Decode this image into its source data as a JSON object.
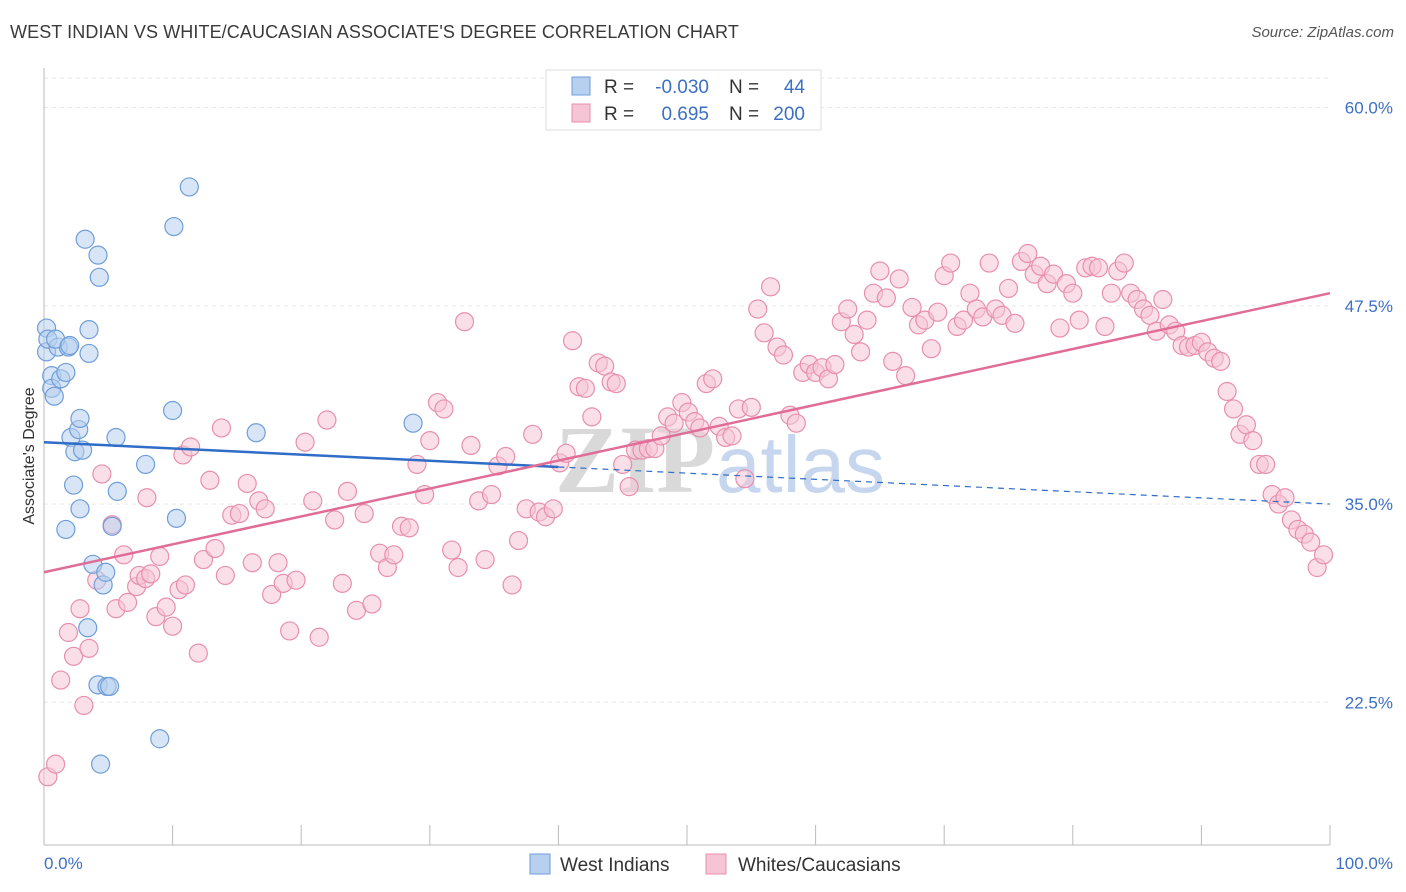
{
  "header": {
    "title": "WEST INDIAN VS WHITE/CAUCASIAN ASSOCIATE'S DEGREE CORRELATION CHART",
    "source": "Source: ZipAtlas.com"
  },
  "watermark": {
    "zip": "ZIP",
    "atlas": "atlas"
  },
  "colors": {
    "blue_fill": "#b7d0ef",
    "blue_stroke": "#6f9ed8",
    "blue_line": "#2f6dc7",
    "pink_fill": "#f6c5d5",
    "pink_stroke": "#e88fad",
    "pink_line": "#e06d97",
    "tick_text": "#3d6fc4",
    "grid": "#e6e6e6"
  },
  "legend_stats": [
    {
      "r_label": "R =",
      "r_value": "-0.030",
      "n_label": "N =",
      "n_value": "44"
    },
    {
      "r_label": "R =",
      "r_value": "0.695",
      "n_label": "N =",
      "n_value": "200"
    }
  ],
  "chart_data": {
    "type": "scatter",
    "title": "WEST INDIAN VS WHITE/CAUCASIAN ASSOCIATE'S DEGREE CORRELATION CHART",
    "xlabel": "",
    "ylabel": "Associate's Degree",
    "xlim": [
      0,
      100
    ],
    "ylim": [
      13.5,
      62.5
    ],
    "x_tick_labels": [
      "0.0%",
      "100.0%"
    ],
    "y_ticks": [
      22.5,
      35.0,
      47.5,
      60.0
    ],
    "y_tick_labels": [
      "22.5%",
      "35.0%",
      "47.5%",
      "60.0%"
    ],
    "grid": true,
    "legend_position": "bottom-center",
    "series": [
      {
        "name": "West Indians",
        "color": "#b7d0ef",
        "trend": {
          "x0": 0,
          "y0": 38.9,
          "x1": 100,
          "y1": 35.0,
          "solid_until": 40
        },
        "points": [
          [
            0.2,
            46.1
          ],
          [
            0.2,
            44.6
          ],
          [
            0.3,
            45.4
          ],
          [
            0.6,
            43.1
          ],
          [
            0.6,
            42.3
          ],
          [
            0.8,
            41.8
          ],
          [
            1.1,
            44.9
          ],
          [
            1.3,
            42.9
          ],
          [
            1.7,
            43.3
          ],
          [
            1.9,
            44.9
          ],
          [
            2.1,
            39.2
          ],
          [
            2.3,
            36.2
          ],
          [
            2.4,
            38.3
          ],
          [
            2.7,
            39.7
          ],
          [
            2.8,
            40.4
          ],
          [
            2.8,
            34.7
          ],
          [
            3.0,
            38.4
          ],
          [
            3.2,
            51.7
          ],
          [
            3.4,
            27.2
          ],
          [
            3.5,
            46.0
          ],
          [
            3.5,
            44.5
          ],
          [
            3.8,
            31.2
          ],
          [
            4.2,
            50.7
          ],
          [
            4.3,
            49.3
          ],
          [
            4.2,
            23.6
          ],
          [
            4.4,
            18.6
          ],
          [
            4.6,
            29.9
          ],
          [
            4.8,
            30.7
          ],
          [
            4.9,
            23.5
          ],
          [
            5.1,
            23.5
          ],
          [
            5.3,
            33.6
          ],
          [
            5.6,
            39.2
          ],
          [
            5.7,
            35.8
          ],
          [
            7.9,
            37.5
          ],
          [
            9.0,
            20.2
          ],
          [
            10.0,
            40.9
          ],
          [
            10.1,
            52.5
          ],
          [
            10.3,
            34.1
          ],
          [
            11.3,
            55.0
          ],
          [
            16.5,
            39.5
          ],
          [
            28.7,
            40.1
          ],
          [
            1.7,
            33.4
          ],
          [
            0.9,
            45.4
          ],
          [
            2.0,
            45.0
          ]
        ]
      },
      {
        "name": "Whites/Caucasians",
        "color": "#f6c5d5",
        "trend": {
          "x0": 0,
          "y0": 30.7,
          "x1": 100,
          "y1": 48.3
        },
        "points": [
          [
            0.3,
            17.8
          ],
          [
            0.9,
            18.6
          ],
          [
            1.3,
            23.9
          ],
          [
            1.9,
            26.9
          ],
          [
            2.3,
            25.4
          ],
          [
            2.8,
            28.4
          ],
          [
            3.1,
            22.3
          ],
          [
            3.5,
            25.9
          ],
          [
            4.1,
            30.2
          ],
          [
            4.5,
            36.9
          ],
          [
            5.3,
            33.7
          ],
          [
            5.6,
            28.4
          ],
          [
            6.2,
            31.8
          ],
          [
            6.5,
            28.8
          ],
          [
            7.2,
            29.8
          ],
          [
            7.4,
            30.5
          ],
          [
            7.9,
            30.3
          ],
          [
            8.0,
            35.4
          ],
          [
            8.3,
            30.6
          ],
          [
            8.7,
            27.9
          ],
          [
            9.0,
            31.7
          ],
          [
            9.5,
            28.5
          ],
          [
            10.0,
            27.3
          ],
          [
            10.5,
            29.6
          ],
          [
            10.8,
            38.1
          ],
          [
            11.0,
            29.9
          ],
          [
            11.4,
            38.6
          ],
          [
            12.0,
            25.6
          ],
          [
            12.4,
            31.5
          ],
          [
            12.9,
            36.5
          ],
          [
            13.3,
            32.2
          ],
          [
            13.8,
            39.8
          ],
          [
            14.1,
            30.5
          ],
          [
            14.6,
            34.3
          ],
          [
            15.2,
            34.4
          ],
          [
            15.8,
            36.3
          ],
          [
            16.2,
            31.3
          ],
          [
            16.7,
            35.2
          ],
          [
            17.2,
            34.7
          ],
          [
            17.7,
            29.3
          ],
          [
            18.2,
            31.3
          ],
          [
            18.6,
            30.0
          ],
          [
            19.1,
            27.0
          ],
          [
            19.6,
            30.2
          ],
          [
            20.3,
            38.9
          ],
          [
            20.9,
            35.2
          ],
          [
            21.4,
            26.6
          ],
          [
            22.0,
            40.3
          ],
          [
            22.6,
            34.0
          ],
          [
            23.2,
            30.0
          ],
          [
            23.6,
            35.8
          ],
          [
            24.3,
            28.3
          ],
          [
            24.9,
            34.4
          ],
          [
            25.5,
            28.7
          ],
          [
            26.1,
            31.9
          ],
          [
            26.7,
            31.0
          ],
          [
            27.2,
            31.8
          ],
          [
            27.8,
            33.6
          ],
          [
            28.4,
            33.5
          ],
          [
            29.0,
            37.5
          ],
          [
            29.6,
            35.6
          ],
          [
            30.0,
            39.0
          ],
          [
            30.6,
            41.4
          ],
          [
            31.1,
            41.0
          ],
          [
            31.7,
            32.1
          ],
          [
            32.2,
            31.0
          ],
          [
            32.7,
            46.5
          ],
          [
            33.2,
            38.7
          ],
          [
            33.8,
            35.2
          ],
          [
            34.3,
            31.5
          ],
          [
            34.8,
            35.6
          ],
          [
            35.3,
            37.4
          ],
          [
            35.9,
            38.0
          ],
          [
            36.4,
            29.9
          ],
          [
            36.9,
            32.7
          ],
          [
            37.5,
            34.7
          ],
          [
            38.0,
            39.4
          ],
          [
            38.5,
            34.5
          ],
          [
            39.0,
            34.2
          ],
          [
            39.6,
            34.7
          ],
          [
            40.1,
            37.6
          ],
          [
            40.6,
            38.2
          ],
          [
            41.1,
            45.3
          ],
          [
            41.6,
            42.4
          ],
          [
            42.1,
            42.3
          ],
          [
            42.6,
            40.5
          ],
          [
            43.1,
            43.9
          ],
          [
            43.6,
            43.7
          ],
          [
            44.1,
            42.7
          ],
          [
            44.5,
            42.6
          ],
          [
            45.0,
            37.5
          ],
          [
            45.5,
            36.1
          ],
          [
            46.0,
            38.4
          ],
          [
            46.5,
            38.4
          ],
          [
            47.0,
            38.5
          ],
          [
            47.5,
            38.5
          ],
          [
            48.0,
            39.3
          ],
          [
            48.5,
            40.5
          ],
          [
            49.0,
            40.1
          ],
          [
            49.6,
            41.4
          ],
          [
            50.1,
            40.8
          ],
          [
            50.6,
            40.2
          ],
          [
            51.0,
            39.8
          ],
          [
            51.5,
            42.6
          ],
          [
            52.0,
            42.9
          ],
          [
            52.5,
            39.9
          ],
          [
            53.0,
            39.2
          ],
          [
            53.5,
            39.3
          ],
          [
            54.0,
            41.0
          ],
          [
            54.5,
            36.6
          ],
          [
            55.0,
            41.1
          ],
          [
            55.5,
            47.3
          ],
          [
            56.0,
            45.8
          ],
          [
            56.5,
            48.7
          ],
          [
            57.0,
            44.9
          ],
          [
            57.5,
            44.4
          ],
          [
            58.0,
            40.6
          ],
          [
            58.5,
            40.1
          ],
          [
            59.0,
            43.3
          ],
          [
            59.5,
            43.8
          ],
          [
            60.0,
            43.3
          ],
          [
            60.5,
            43.6
          ],
          [
            61.0,
            42.9
          ],
          [
            61.5,
            43.8
          ],
          [
            62.0,
            46.5
          ],
          [
            62.5,
            47.3
          ],
          [
            63.0,
            45.7
          ],
          [
            63.5,
            44.6
          ],
          [
            64.0,
            46.6
          ],
          [
            64.5,
            48.3
          ],
          [
            65.0,
            49.7
          ],
          [
            65.5,
            48.0
          ],
          [
            66.0,
            44.0
          ],
          [
            66.5,
            49.2
          ],
          [
            67.0,
            43.1
          ],
          [
            67.5,
            47.4
          ],
          [
            68.0,
            46.3
          ],
          [
            68.5,
            46.6
          ],
          [
            69.0,
            44.8
          ],
          [
            69.5,
            47.1
          ],
          [
            70.0,
            49.4
          ],
          [
            70.5,
            50.2
          ],
          [
            71.0,
            46.2
          ],
          [
            71.5,
            46.6
          ],
          [
            72.0,
            48.3
          ],
          [
            72.5,
            47.3
          ],
          [
            73.0,
            46.8
          ],
          [
            73.5,
            50.2
          ],
          [
            74.0,
            47.3
          ],
          [
            74.5,
            46.9
          ],
          [
            75.0,
            48.6
          ],
          [
            75.5,
            46.4
          ],
          [
            76.0,
            50.3
          ],
          [
            76.5,
            50.8
          ],
          [
            77.0,
            49.5
          ],
          [
            77.5,
            50.0
          ],
          [
            78.0,
            48.9
          ],
          [
            78.5,
            49.5
          ],
          [
            79.0,
            46.1
          ],
          [
            79.5,
            48.9
          ],
          [
            80.0,
            48.3
          ],
          [
            80.5,
            46.6
          ],
          [
            81.0,
            49.9
          ],
          [
            81.5,
            50.0
          ],
          [
            82.0,
            49.9
          ],
          [
            82.5,
            46.2
          ],
          [
            83.0,
            48.3
          ],
          [
            83.5,
            49.7
          ],
          [
            84.0,
            50.2
          ],
          [
            84.5,
            48.3
          ],
          [
            85.0,
            47.9
          ],
          [
            85.5,
            47.3
          ],
          [
            86.0,
            46.9
          ],
          [
            86.5,
            45.9
          ],
          [
            87.0,
            47.9
          ],
          [
            87.5,
            46.3
          ],
          [
            88.0,
            45.9
          ],
          [
            88.5,
            45.0
          ],
          [
            89.0,
            44.9
          ],
          [
            89.5,
            45.0
          ],
          [
            90.0,
            45.2
          ],
          [
            90.5,
            44.6
          ],
          [
            91.0,
            44.2
          ],
          [
            91.5,
            44.0
          ],
          [
            92.0,
            42.1
          ],
          [
            92.5,
            41.0
          ],
          [
            93.0,
            39.4
          ],
          [
            93.5,
            40.0
          ],
          [
            94.0,
            39.0
          ],
          [
            94.5,
            37.5
          ],
          [
            95.0,
            37.5
          ],
          [
            95.5,
            35.6
          ],
          [
            96.0,
            35.0
          ],
          [
            96.5,
            35.4
          ],
          [
            97.0,
            34.0
          ],
          [
            97.5,
            33.4
          ],
          [
            98.0,
            33.1
          ],
          [
            98.5,
            32.6
          ],
          [
            99.0,
            31.0
          ],
          [
            99.5,
            31.8
          ]
        ]
      }
    ]
  }
}
